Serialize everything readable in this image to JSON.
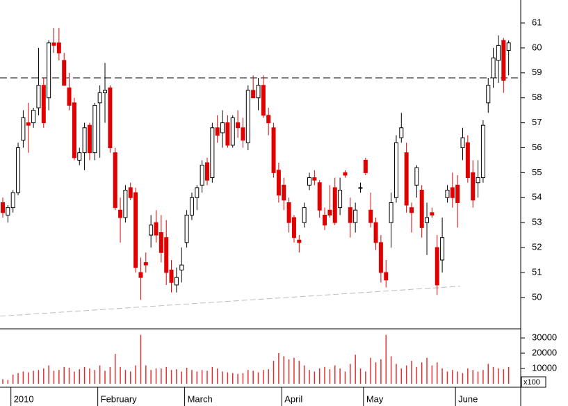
{
  "chart_data": {
    "type": "candlestick",
    "categories": [
      null,
      null,
      "2010",
      null,
      null,
      null,
      null,
      null,
      null,
      null,
      null,
      null,
      null,
      null,
      null,
      null,
      null,
      null,
      null,
      "February",
      null,
      null,
      null,
      null,
      null,
      null,
      null,
      null,
      null,
      null,
      null,
      null,
      null,
      null,
      null,
      null,
      "March",
      null,
      null,
      null,
      null,
      null,
      null,
      null,
      null,
      null,
      null,
      null,
      null,
      null,
      null,
      null,
      null,
      null,
      null,
      "April",
      null,
      null,
      null,
      null,
      null,
      null,
      null,
      null,
      null,
      null,
      null,
      null,
      null,
      null,
      null,
      "May",
      null,
      null,
      null,
      null,
      null,
      null,
      null,
      null,
      null,
      null,
      null,
      null,
      null,
      null,
      null,
      null,
      null,
      "June",
      null,
      null,
      null,
      null,
      null,
      null,
      null,
      null,
      null,
      null
    ],
    "open": [
      53.8,
      53.3,
      53.6,
      54.2,
      56.3,
      57.0,
      57.0,
      57.6,
      58.5,
      58.0,
      60.2,
      60.2,
      59.5,
      58.4,
      57.8,
      55.5,
      55.8,
      56.9,
      55.8,
      57.8,
      58.2,
      58.4,
      55.8,
      53.5,
      53.2,
      54.4,
      54.2,
      51.0,
      51.4,
      52.5,
      53.0,
      52.6,
      52.4,
      51.1,
      50.5,
      51.1,
      52.2,
      53.3,
      54.0,
      54.5,
      55.4,
      54.8,
      56.8,
      56.6,
      57.0,
      56.1,
      57.0,
      56.8,
      56.2,
      58.3,
      58.0,
      58.5,
      57.3,
      56.8,
      55.1,
      54.5,
      53.8,
      53.2,
      52.3,
      53.0,
      54.5,
      54.8,
      54.6,
      53.3,
      53.5,
      54.4,
      53.6,
      55.0,
      53.6,
      53.0,
      54.4,
      55.5,
      53.5,
      53.0,
      52.2,
      51.0,
      53.0,
      54.0,
      56.4,
      55.8,
      53.6,
      54.5,
      54.3,
      53.0,
      53.4,
      52.0,
      51.5,
      54.0,
      54.4,
      54.5,
      56.0,
      56.2,
      55.0,
      54.6,
      54.8,
      57.8,
      58.8,
      59.5,
      60.3,
      59.9
    ],
    "high": [
      54.0,
      53.7,
      54.3,
      56.2,
      57.5,
      57.8,
      57.6,
      60.0,
      58.8,
      60.3,
      60.8,
      60.8,
      59.8,
      59.0,
      58.0,
      56.0,
      57.0,
      57.0,
      57.8,
      58.5,
      59.4,
      58.5,
      56.0,
      54.0,
      54.5,
      54.6,
      54.4,
      51.6,
      51.8,
      53.3,
      53.5,
      53.3,
      53.1,
      51.5,
      51.2,
      52.0,
      53.5,
      54.2,
      54.5,
      55.5,
      55.6,
      57.0,
      57.3,
      57.5,
      57.3,
      57.3,
      57.5,
      57.2,
      58.5,
      58.9,
      58.8,
      58.9,
      57.6,
      57.0,
      55.4,
      54.8,
      54.0,
      53.3,
      52.5,
      53.8,
      55.0,
      55.1,
      54.7,
      53.6,
      54.5,
      54.8,
      54.8,
      55.1,
      54.0,
      53.8,
      54.6,
      55.6,
      54.2,
      53.2,
      52.5,
      51.5,
      54.2,
      56.5,
      57.4,
      56.2,
      53.8,
      55.3,
      54.5,
      53.8,
      53.6,
      52.5,
      53.2,
      54.5,
      55.0,
      54.9,
      56.8,
      56.5,
      55.5,
      55.5,
      57.1,
      58.8,
      60.0,
      60.5,
      60.4,
      60.3
    ],
    "low": [
      53.2,
      53.0,
      53.4,
      54.1,
      56.0,
      55.8,
      56.8,
      57.3,
      56.8,
      57.5,
      59.8,
      59.5,
      58.5,
      57.5,
      55.5,
      55.3,
      55.1,
      55.5,
      55.5,
      55.6,
      57.0,
      55.8,
      53.5,
      52.2,
      53.0,
      53.9,
      51.0,
      49.9,
      51.0,
      52.0,
      52.2,
      51.4,
      50.5,
      50.2,
      50.2,
      50.6,
      52.0,
      53.1,
      53.5,
      54.2,
      54.5,
      54.6,
      56.2,
      56.0,
      56.0,
      56.0,
      56.4,
      56.0,
      55.9,
      58.0,
      57.5,
      57.2,
      56.5,
      54.8,
      53.8,
      53.5,
      52.6,
      52.2,
      51.8,
      52.8,
      54.3,
      54.5,
      53.2,
      52.7,
      53.2,
      52.9,
      53.3,
      54.8,
      52.4,
      52.6,
      54.2,
      54.9,
      52.8,
      51.9,
      50.6,
      50.4,
      52.0,
      53.8,
      56.2,
      53.4,
      52.6,
      54.0,
      52.4,
      51.7,
      53.2,
      50.1,
      51.0,
      53.8,
      53.6,
      52.8,
      55.5,
      54.6,
      53.6,
      54.0,
      54.6,
      57.4,
      58.4,
      58.6,
      58.2,
      58.9
    ],
    "close": [
      53.4,
      53.6,
      54.2,
      56.0,
      57.2,
      56.9,
      57.5,
      58.5,
      57.0,
      60.2,
      60.1,
      59.8,
      58.5,
      57.7,
      55.6,
      55.8,
      56.8,
      55.8,
      57.7,
      58.2,
      58.3,
      56.0,
      53.6,
      53.2,
      54.3,
      54.0,
      51.2,
      50.8,
      51.3,
      52.9,
      52.5,
      51.8,
      51.0,
      50.6,
      50.8,
      51.3,
      53.3,
      54.0,
      54.4,
      55.3,
      54.7,
      56.8,
      56.5,
      57.0,
      56.1,
      57.2,
      56.8,
      56.3,
      58.3,
      58.0,
      58.5,
      57.3,
      57.0,
      55.0,
      54.1,
      53.9,
      53.0,
      52.4,
      52.2,
      53.6,
      54.8,
      54.7,
      53.5,
      52.9,
      53.3,
      53.0,
      54.3,
      54.9,
      53.0,
      53.5,
      54.4,
      55.0,
      53.0,
      52.2,
      51.0,
      50.7,
      53.8,
      56.2,
      56.8,
      53.7,
      53.4,
      55.2,
      52.8,
      53.2,
      53.3,
      50.5,
      52.4,
      54.3,
      54.0,
      53.8,
      56.4,
      54.8,
      53.9,
      54.8,
      56.9,
      58.5,
      59.6,
      60.1,
      58.7,
      60.2
    ],
    "volume": [
      3000,
      2500,
      6000,
      7000,
      8000,
      7500,
      8500,
      9000,
      10000,
      12000,
      8500,
      9000,
      11000,
      10500,
      8000,
      9500,
      11000,
      10000,
      9000,
      12000,
      8500,
      11000,
      19500,
      11000,
      9000,
      8000,
      12000,
      32000,
      12000,
      9000,
      10000,
      10000,
      11000,
      9000,
      9500,
      8000,
      10500,
      9000,
      8000,
      9000,
      8500,
      11000,
      10000,
      8000,
      7500,
      7000,
      6500,
      7000,
      9000,
      8500,
      7500,
      9000,
      9500,
      15000,
      20000,
      18000,
      16000,
      17000,
      15000,
      12000,
      9000,
      8000,
      10000,
      11000,
      9500,
      12000,
      10000,
      8000,
      13000,
      19000,
      10000,
      8000,
      17000,
      14000,
      16000,
      32000,
      18000,
      13000,
      10000,
      12000,
      15000,
      11000,
      14000,
      17000,
      12000,
      14000,
      10000,
      8000,
      9000,
      8000,
      7000,
      10000,
      9000,
      8000,
      9000,
      13000,
      11000,
      10000,
      9500,
      11000
    ],
    "up_color": "#ffffff",
    "down_color": "#e00000",
    "volume_color": "#e03030",
    "ylim": [
      48.77,
      61.92
    ],
    "yticks": [
      50,
      51,
      52,
      53,
      54,
      55,
      56,
      57,
      58,
      59,
      60,
      61
    ],
    "volume_ylim": [
      0,
      35500
    ],
    "volume_yticks": [
      10000,
      20000,
      30000
    ],
    "volume_unit_label": "x100",
    "resistance": 58.8,
    "trendline": {
      "x": [
        -0.5,
        89.5
      ],
      "values": [
        49.25,
        50.45
      ]
    }
  }
}
